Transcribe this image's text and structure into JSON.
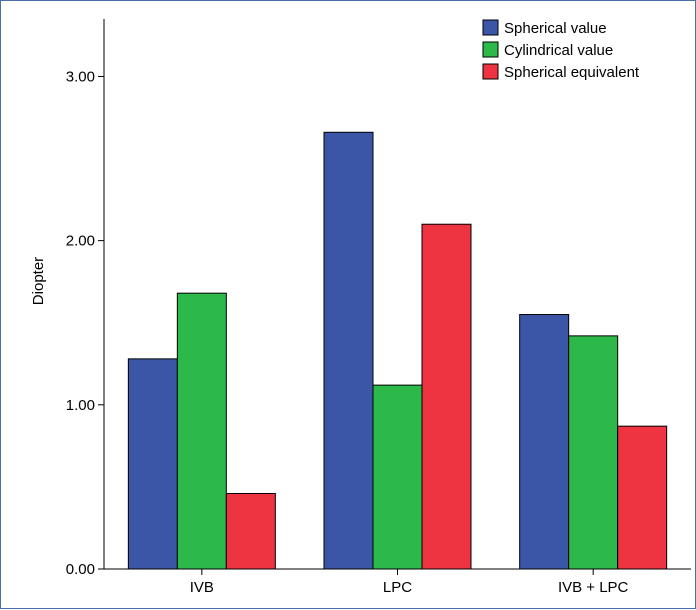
{
  "chart_data": {
    "type": "bar",
    "categories": [
      "IVB",
      "LPC",
      "IVB + LPC"
    ],
    "series": [
      {
        "name": "Spherical value",
        "color": "#3b56a6",
        "values": [
          1.28,
          2.66,
          1.55
        ]
      },
      {
        "name": "Cylindrical value",
        "color": "#2db84a",
        "values": [
          1.68,
          1.12,
          1.42
        ]
      },
      {
        "name": "Spherical equivalent",
        "color": "#ee3440",
        "values": [
          0.46,
          2.1,
          0.87
        ]
      }
    ],
    "title": "",
    "xlabel": "",
    "ylabel": "Diopter",
    "ylim": [
      0,
      3.35
    ],
    "yticks": [
      "0.00",
      "1.00",
      "2.00",
      "3.00"
    ],
    "ytick_values": [
      0,
      1,
      2,
      3
    ],
    "grid": false,
    "legend_position": "top-right"
  }
}
